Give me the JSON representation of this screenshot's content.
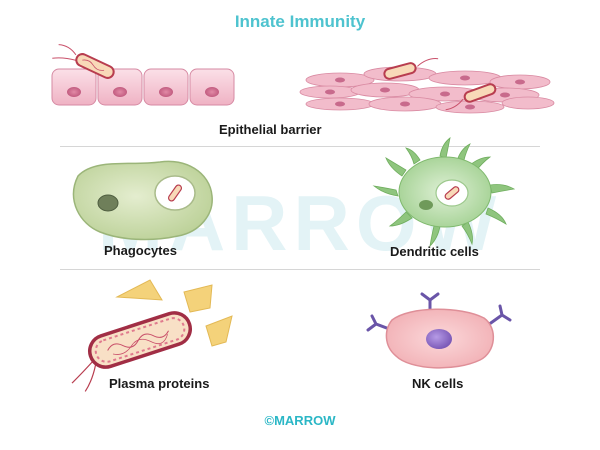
{
  "title": "Innate Immunity",
  "watermark": "MARROW",
  "labels": {
    "epithelial": "Epithelial barrier",
    "phagocytes": "Phagocytes",
    "dendritic": "Dendritic cells",
    "plasma": "Plasma proteins",
    "nk": "NK cells"
  },
  "footer": "©MARROW",
  "colors": {
    "title": "#4ec3cf",
    "cell_pink": "#f3c1d0",
    "phagocyte_green": "#cfe0b0",
    "dendritic_green": "#a7d39e",
    "nk_pink": "#f7c5c8",
    "nk_nucleus": "#8a6dc9",
    "protein_yellow": "#f4d27a"
  },
  "icons": [
    "epithelial-cells-icon",
    "connective-tissue-icon",
    "bacterium-icon",
    "phagocyte-icon",
    "dendritic-cell-icon",
    "plasma-protein-icon",
    "nk-cell-icon"
  ]
}
